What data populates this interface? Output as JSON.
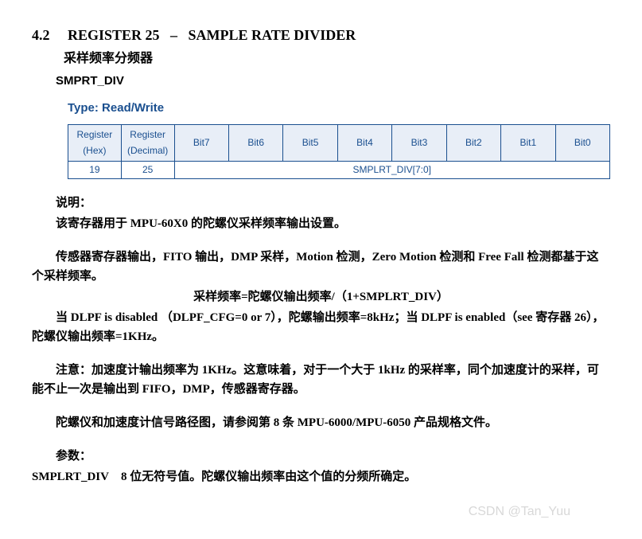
{
  "header": {
    "section_no": "4.2",
    "title_en": "REGISTER 25",
    "dash": "–",
    "subtitle_en": "SAMPLE RATE DIVIDER",
    "title_cn": "采样频率分频器",
    "reg_name": "SMPRT_DIV",
    "type_label": "Type: Read/Write"
  },
  "table": {
    "head": [
      "Register (Hex)",
      "Register (Decimal)",
      "Bit7",
      "Bit6",
      "Bit5",
      "Bit4",
      "Bit3",
      "Bit2",
      "Bit1",
      "Bit0"
    ],
    "row": {
      "hex": "19",
      "dec": "25",
      "span_label": "SMPLRT_DIV[7:0]"
    }
  },
  "body": {
    "p1a": "说明：",
    "p1b": "该寄存器用于 MPU-60X0 的陀螺仪采样频率输出设置。",
    "p2": "传感器寄存器输出，FITO 输出，DMP 采样，Motion 检测，Zero Motion 检测和 Free Fall 检测都基于这个采样频率。",
    "formula": "采样频率=陀螺仪输出频率/（1+SMPLRT_DIV）",
    "p3": "当 DLPF is disabled （DLPF_CFG=0 or 7），陀螺输出频率=8kHz；当 DLPF is enabled（see 寄存器 26），陀螺仪输出频率=1KHz。",
    "p4": "注意：加速度计输出频率为 1KHz。这意味着，对于一个大于 1kHz 的采样率，同个加速度计的采样，可能不止一次是输出到 FIFO，DMP，传感器寄存器。",
    "p5": "陀螺仪和加速度计信号路径图，请参阅第 8 条 MPU-6000/MPU-6050 产品规格文件。",
    "p6a": "参数：",
    "p6b": "SMPLRT_DIV    8 位无符号值。陀螺仪输出频率由这个值的分频所确定。"
  },
  "watermark": "CSDN @Tan_Yuu"
}
